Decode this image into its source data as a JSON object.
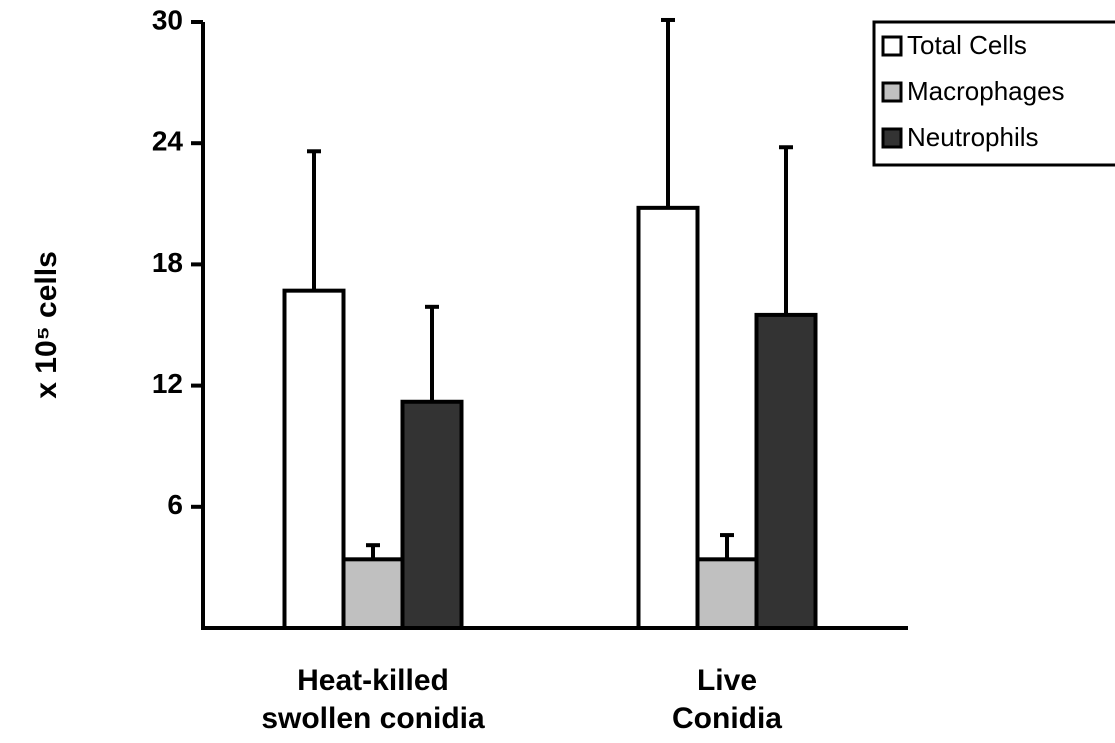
{
  "chart_data": {
    "type": "bar",
    "ylabel": "x 10⁵ cells",
    "categories": [
      "Heat-killed\nswollen conidia",
      "Live\nConidia"
    ],
    "series": [
      {
        "name": "Total Cells",
        "color": "#ffffff",
        "values": [
          16.7,
          20.8
        ],
        "errors": [
          6.9,
          9.3
        ]
      },
      {
        "name": "Macrophages",
        "color": "#c0c0c0",
        "values": [
          3.4,
          3.4
        ],
        "errors": [
          0.7,
          1.2
        ]
      },
      {
        "name": "Neutrophils",
        "color": "#333333",
        "values": [
          11.2,
          15.5
        ],
        "errors": [
          4.7,
          8.3
        ]
      }
    ],
    "ylim": [
      0,
      30
    ],
    "yticks": [
      6,
      12,
      18,
      24,
      30
    ],
    "legend": "upper right"
  }
}
